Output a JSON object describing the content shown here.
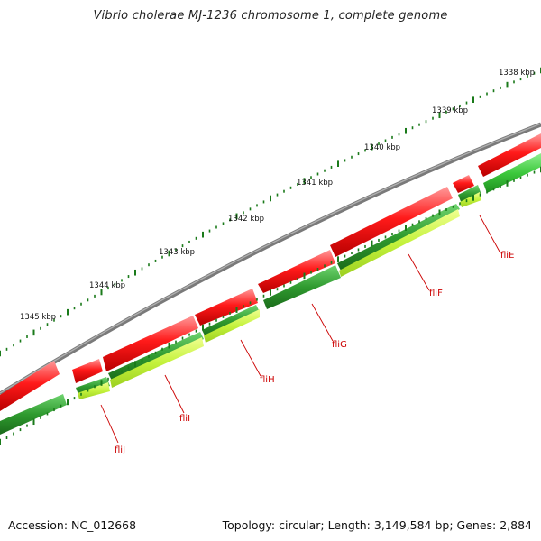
{
  "title": "Vibrio cholerae MJ-1236 chromosome 1, complete genome",
  "footer": {
    "accession": "Accession: NC_012668",
    "stats": "Topology: circular; Length: 3,149,584 bp; Genes: 2,884"
  },
  "ruler_labels": [
    "1338 kbp",
    "1339 kbp",
    "1340 kbp",
    "1341 kbp",
    "1342 kbp",
    "1343 kbp",
    "1344 kbp",
    "1345 kbp"
  ],
  "gene_labels": [
    "fliE",
    "fliF",
    "fliG",
    "fliH",
    "fliI",
    "fliJ"
  ],
  "colors": {
    "backbone": "#808080",
    "forward_gene": "#ff0000",
    "reverse_gene": "#2e8b2e",
    "reverse_gene_light": "#b8f040",
    "ticks": "#1a7a1a",
    "gene_label": "#cc0000"
  }
}
